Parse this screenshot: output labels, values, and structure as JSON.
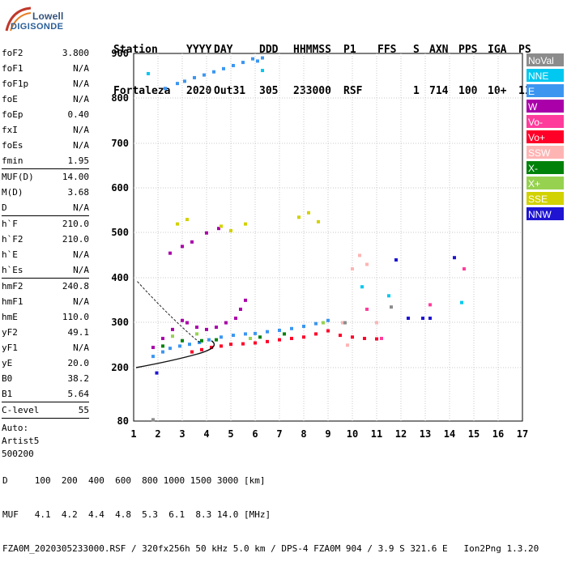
{
  "logo": {
    "line1": "Lowell",
    "line2": "DIGISONDE"
  },
  "header": {
    "labels": [
      "Station",
      "YYYY",
      "DAY",
      "DDD",
      "HHMMSS",
      "P1",
      "FFS",
      "S",
      "AXN",
      "PPS",
      "IGA",
      "PS"
    ],
    "values": [
      "Fortaleza",
      "2020",
      "Out31",
      "305",
      "233000",
      "RSF",
      "",
      "1",
      "714",
      "100",
      "10+",
      "11"
    ]
  },
  "params": {
    "group1": [
      {
        "name": "foF2",
        "value": "3.800"
      },
      {
        "name": "foF1",
        "value": "N/A"
      },
      {
        "name": "foF1p",
        "value": "N/A"
      },
      {
        "name": "foE",
        "value": "N/A"
      },
      {
        "name": "foEp",
        "value": "0.40"
      },
      {
        "name": "fxI",
        "value": "N/A"
      },
      {
        "name": "foEs",
        "value": "N/A"
      },
      {
        "name": "fmin",
        "value": "1.95"
      }
    ],
    "group2": [
      {
        "name": "MUF(D)",
        "value": "14.00"
      },
      {
        "name": "M(D)",
        "value": "3.68"
      },
      {
        "name": "D",
        "value": "N/A"
      }
    ],
    "group3": [
      {
        "name": "h`F",
        "value": "210.0"
      },
      {
        "name": "h`F2",
        "value": "210.0"
      },
      {
        "name": "h`E",
        "value": "N/A"
      },
      {
        "name": "h`Es",
        "value": "N/A"
      }
    ],
    "group4": [
      {
        "name": "hmF2",
        "value": "240.8"
      },
      {
        "name": "hmF1",
        "value": "N/A"
      },
      {
        "name": "hmE",
        "value": "110.0"
      },
      {
        "name": "yF2",
        "value": "49.1"
      },
      {
        "name": "yF1",
        "value": "N/A"
      },
      {
        "name": "yE",
        "value": "20.0"
      },
      {
        "name": "B0",
        "value": "38.2"
      },
      {
        "name": "B1",
        "value": "5.64"
      }
    ],
    "clevel": {
      "name": "C-level",
      "value": "55"
    },
    "auto": [
      "Auto:",
      "Artist5",
      "500200"
    ]
  },
  "legend": [
    {
      "label": "NoVal",
      "color": "#8c8c8c"
    },
    {
      "label": "NNE",
      "color": "#00c8f0"
    },
    {
      "label": "E",
      "color": "#3c96f0"
    },
    {
      "label": "W",
      "color": "#aa00aa"
    },
    {
      "label": "Vo-",
      "color": "#ff3c9c"
    },
    {
      "label": "Vo+",
      "color": "#ff0028"
    },
    {
      "label": "SSW",
      "color": "#ffb4b4"
    },
    {
      "label": "X-",
      "color": "#00820a"
    },
    {
      "label": "X+",
      "color": "#96d250"
    },
    {
      "label": "SSE",
      "color": "#d2d200"
    },
    {
      "label": "NNW",
      "color": "#1e14d2"
    }
  ],
  "chart_data": {
    "type": "scatter",
    "xlim": [
      1,
      17
    ],
    "ylim": [
      80,
      900
    ],
    "x_ticks": [
      "1",
      "2",
      "3",
      "4",
      "5",
      "6",
      "7",
      "8",
      "9",
      "10",
      "11",
      "12",
      "13",
      "14",
      "15",
      "16",
      "17"
    ],
    "y_ticks": [
      "80",
      "200",
      "300",
      "400",
      "500",
      "600",
      "700",
      "800",
      "900"
    ],
    "grid": true,
    "legend_position": "right",
    "series": [
      {
        "name": "E",
        "points": [
          [
            2.3,
            822
          ],
          [
            2.8,
            833
          ],
          [
            3.1,
            838
          ],
          [
            3.5,
            846
          ],
          [
            3.9,
            852
          ],
          [
            4.3,
            859
          ],
          [
            4.7,
            866
          ],
          [
            5.1,
            873
          ],
          [
            5.5,
            880
          ],
          [
            5.9,
            888
          ],
          [
            6.1,
            883
          ],
          [
            6.3,
            890
          ]
        ]
      },
      {
        "name": "E",
        "points": [
          [
            1.8,
            225
          ],
          [
            2.2,
            235
          ],
          [
            2.5,
            243
          ],
          [
            2.9,
            248
          ],
          [
            3.3,
            252
          ],
          [
            3.7,
            256
          ],
          [
            4.1,
            262
          ],
          [
            4.6,
            268
          ],
          [
            5.1,
            272
          ],
          [
            5.6,
            275
          ],
          [
            6.0,
            276
          ],
          [
            6.5,
            280
          ],
          [
            7.0,
            283
          ],
          [
            7.5,
            287
          ],
          [
            8.0,
            292
          ],
          [
            8.5,
            298
          ],
          [
            9.0,
            305
          ]
        ]
      },
      {
        "name": "Vo+",
        "points": [
          [
            3.4,
            235
          ],
          [
            3.8,
            240
          ],
          [
            4.2,
            245
          ],
          [
            4.6,
            248
          ],
          [
            5.0,
            252
          ],
          [
            5.5,
            253
          ],
          [
            6.0,
            255
          ],
          [
            6.5,
            258
          ],
          [
            7.0,
            262
          ],
          [
            7.5,
            265
          ],
          [
            8.0,
            268
          ],
          [
            8.5,
            275
          ],
          [
            9.0,
            282
          ],
          [
            9.5,
            272
          ],
          [
            10.0,
            268
          ],
          [
            10.5,
            265
          ],
          [
            11.0,
            264
          ]
        ]
      },
      {
        "name": "W",
        "points": [
          [
            1.8,
            245
          ],
          [
            2.2,
            265
          ],
          [
            2.6,
            285
          ],
          [
            3.0,
            305
          ],
          [
            3.2,
            300
          ],
          [
            3.6,
            290
          ],
          [
            4.0,
            285
          ],
          [
            4.4,
            290
          ],
          [
            4.8,
            300
          ],
          [
            5.2,
            310
          ],
          [
            5.4,
            330
          ],
          [
            5.6,
            350
          ],
          [
            2.5,
            455
          ],
          [
            3.0,
            470
          ],
          [
            3.4,
            480
          ],
          [
            4.0,
            500
          ],
          [
            4.5,
            510
          ]
        ]
      },
      {
        "name": "SSE",
        "points": [
          [
            2.8,
            520
          ],
          [
            3.2,
            530
          ],
          [
            4.6,
            515
          ],
          [
            5.0,
            505
          ],
          [
            5.6,
            520
          ],
          [
            7.8,
            535
          ],
          [
            8.2,
            545
          ],
          [
            8.6,
            525
          ]
        ]
      },
      {
        "name": "X-",
        "points": [
          [
            2.2,
            248
          ],
          [
            3.0,
            260
          ],
          [
            3.8,
            260
          ],
          [
            4.4,
            262
          ],
          [
            6.2,
            268
          ],
          [
            7.2,
            275
          ]
        ]
      },
      {
        "name": "X+",
        "points": [
          [
            2.6,
            270
          ],
          [
            3.6,
            275
          ],
          [
            5.8,
            265
          ],
          [
            8.8,
            300
          ]
        ]
      },
      {
        "name": "SSW",
        "points": [
          [
            9.6,
            300
          ],
          [
            10.0,
            420
          ],
          [
            10.3,
            450
          ],
          [
            10.6,
            430
          ],
          [
            11.0,
            300
          ],
          [
            9.8,
            250
          ]
        ]
      },
      {
        "name": "NNW",
        "points": [
          [
            1.95,
            188
          ],
          [
            12.3,
            310
          ],
          [
            12.9,
            310
          ],
          [
            13.2,
            310
          ],
          [
            11.8,
            440
          ],
          [
            14.2,
            445
          ]
        ]
      },
      {
        "name": "NNE",
        "points": [
          [
            1.6,
            855
          ],
          [
            6.3,
            862
          ],
          [
            14.5,
            345
          ],
          [
            11.5,
            360
          ],
          [
            10.4,
            380
          ]
        ]
      },
      {
        "name": "Vo-",
        "points": [
          [
            11.2,
            265
          ],
          [
            10.6,
            330
          ],
          [
            13.2,
            340
          ],
          [
            14.6,
            420
          ]
        ]
      },
      {
        "name": "NoVal",
        "points": [
          [
            1.8,
            83
          ],
          [
            9.7,
            300
          ],
          [
            11.6,
            335
          ]
        ]
      }
    ]
  },
  "footer": {
    "line1": "D     100  200  400  600  800 1000 1500 3000 [km]",
    "line2": "MUF   4.1  4.2  4.4  4.8  5.3  6.1  8.3 14.0 [MHz]",
    "line3": "FZA0M_2020305233000.RSF / 320fx256h 50 kHz 5.0 km / DPS-4 FZA0M 904 / 3.9 S 321.6 E   Ion2Png 1.3.20"
  }
}
